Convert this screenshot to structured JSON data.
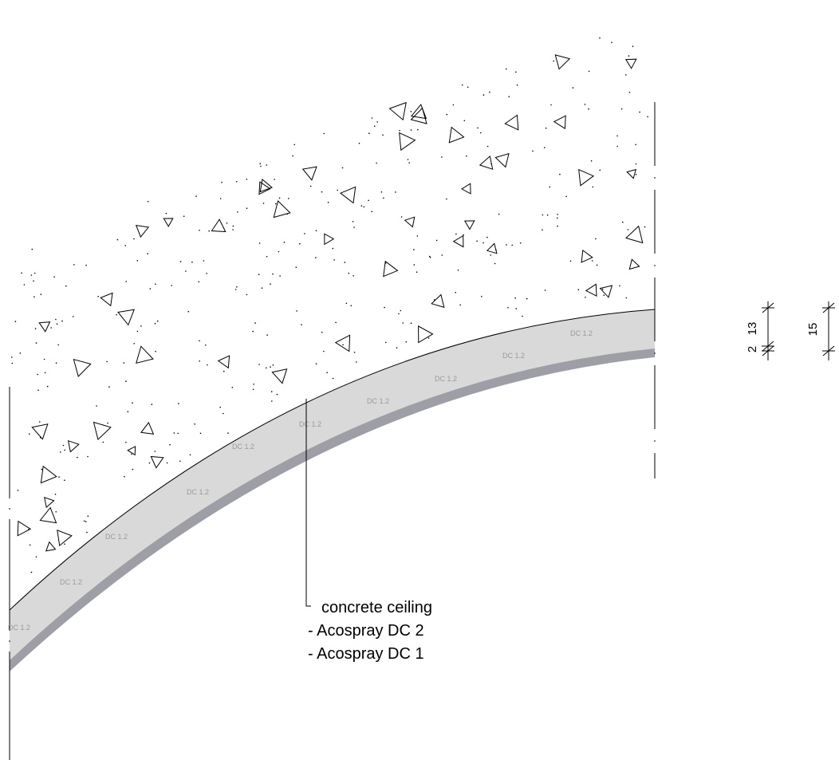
{
  "layer_label": "DC 1.2",
  "legend": {
    "lines": [
      "concrete ceiling",
      "- Acospray DC 2",
      "- Acospray DC 1"
    ]
  },
  "dimensions": {
    "detail_chain": [
      "2",
      "13"
    ],
    "overall": "15"
  },
  "colors": {
    "coating_fill": "#d9d9d9",
    "coating_base": "#9e9ea6",
    "line": "#000000"
  }
}
